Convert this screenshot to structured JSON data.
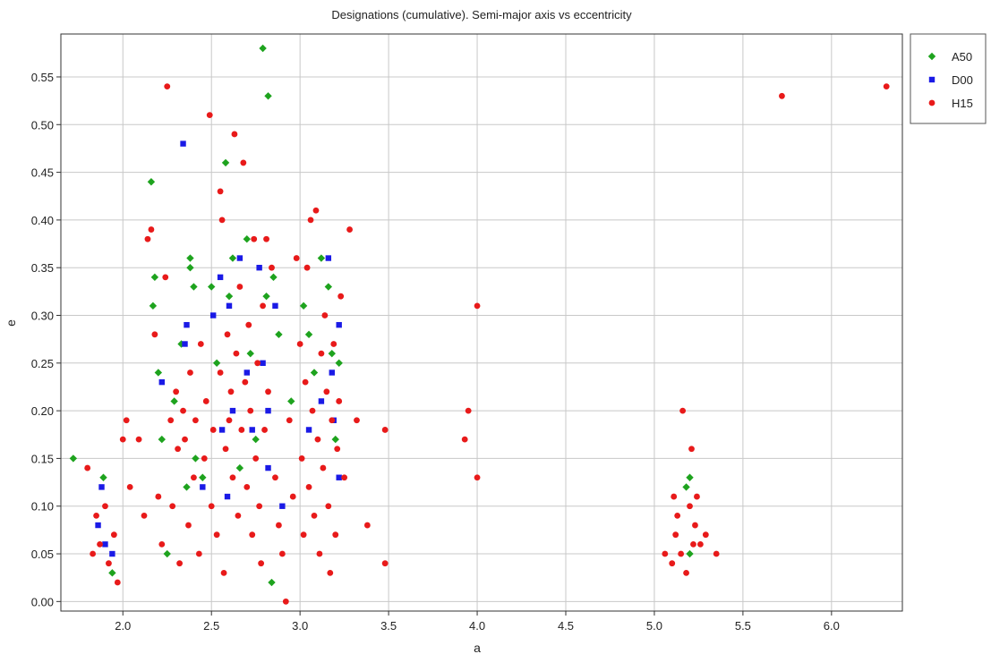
{
  "chart_data": {
    "type": "scatter",
    "title": "Designations (cumulative). Semi-major axis vs eccentricity",
    "xlabel": "a",
    "ylabel": "e",
    "xlim": [
      1.65,
      6.4
    ],
    "ylim": [
      -0.01,
      0.595
    ],
    "xticks": [
      "2.0",
      "2.5",
      "3.0",
      "3.5",
      "4.0",
      "4.5",
      "5.0",
      "5.5",
      "6.0"
    ],
    "yticks": [
      "0.00",
      "0.05",
      "0.10",
      "0.15",
      "0.20",
      "0.25",
      "0.30",
      "0.35",
      "0.40",
      "0.45",
      "0.50",
      "0.55"
    ],
    "grid": true,
    "legend_position": "outside-top-right",
    "series": [
      {
        "name": "A50",
        "color": "#1ea31e",
        "marker": "diamond",
        "points": [
          [
            1.72,
            0.15
          ],
          [
            1.89,
            0.13
          ],
          [
            1.94,
            0.03
          ],
          [
            2.16,
            0.44
          ],
          [
            2.17,
            0.31
          ],
          [
            2.18,
            0.34
          ],
          [
            2.2,
            0.24
          ],
          [
            2.22,
            0.17
          ],
          [
            2.25,
            0.05
          ],
          [
            2.29,
            0.21
          ],
          [
            2.33,
            0.27
          ],
          [
            2.36,
            0.12
          ],
          [
            2.38,
            0.36
          ],
          [
            2.38,
            0.35
          ],
          [
            2.4,
            0.33
          ],
          [
            2.41,
            0.15
          ],
          [
            2.45,
            0.13
          ],
          [
            2.5,
            0.33
          ],
          [
            2.53,
            0.25
          ],
          [
            2.58,
            0.46
          ],
          [
            2.6,
            0.32
          ],
          [
            2.62,
            0.36
          ],
          [
            2.66,
            0.14
          ],
          [
            2.7,
            0.38
          ],
          [
            2.72,
            0.26
          ],
          [
            2.75,
            0.17
          ],
          [
            2.79,
            0.58
          ],
          [
            2.81,
            0.32
          ],
          [
            2.82,
            0.53
          ],
          [
            2.84,
            0.02
          ],
          [
            2.85,
            0.34
          ],
          [
            2.88,
            0.28
          ],
          [
            2.95,
            0.21
          ],
          [
            3.02,
            0.31
          ],
          [
            3.05,
            0.28
          ],
          [
            3.08,
            0.24
          ],
          [
            3.12,
            0.36
          ],
          [
            3.16,
            0.33
          ],
          [
            3.18,
            0.26
          ],
          [
            3.2,
            0.17
          ],
          [
            3.22,
            0.25
          ],
          [
            5.18,
            0.12
          ],
          [
            5.2,
            0.13
          ],
          [
            5.2,
            0.05
          ]
        ]
      },
      {
        "name": "D00",
        "color": "#1a1ae6",
        "marker": "square",
        "points": [
          [
            1.86,
            0.08
          ],
          [
            1.88,
            0.12
          ],
          [
            1.9,
            0.06
          ],
          [
            1.94,
            0.05
          ],
          [
            2.22,
            0.23
          ],
          [
            2.34,
            0.48
          ],
          [
            2.35,
            0.27
          ],
          [
            2.36,
            0.29
          ],
          [
            2.45,
            0.12
          ],
          [
            2.51,
            0.3
          ],
          [
            2.55,
            0.34
          ],
          [
            2.56,
            0.18
          ],
          [
            2.59,
            0.11
          ],
          [
            2.6,
            0.31
          ],
          [
            2.62,
            0.2
          ],
          [
            2.66,
            0.36
          ],
          [
            2.7,
            0.24
          ],
          [
            2.73,
            0.18
          ],
          [
            2.77,
            0.35
          ],
          [
            2.79,
            0.25
          ],
          [
            2.82,
            0.2
          ],
          [
            2.82,
            0.14
          ],
          [
            2.86,
            0.31
          ],
          [
            2.9,
            0.1
          ],
          [
            3.05,
            0.18
          ],
          [
            3.12,
            0.21
          ],
          [
            3.16,
            0.36
          ],
          [
            3.18,
            0.24
          ],
          [
            3.19,
            0.19
          ],
          [
            3.22,
            0.13
          ],
          [
            3.22,
            0.29
          ]
        ]
      },
      {
        "name": "H15",
        "color": "#e81a1a",
        "marker": "circle",
        "points": [
          [
            1.8,
            0.14
          ],
          [
            1.83,
            0.05
          ],
          [
            1.85,
            0.09
          ],
          [
            1.87,
            0.06
          ],
          [
            1.9,
            0.1
          ],
          [
            1.92,
            0.04
          ],
          [
            1.95,
            0.07
          ],
          [
            1.97,
            0.02
          ],
          [
            2.0,
            0.17
          ],
          [
            2.02,
            0.19
          ],
          [
            2.04,
            0.12
          ],
          [
            2.09,
            0.17
          ],
          [
            2.12,
            0.09
          ],
          [
            2.14,
            0.38
          ],
          [
            2.16,
            0.39
          ],
          [
            2.18,
            0.28
          ],
          [
            2.2,
            0.11
          ],
          [
            2.22,
            0.06
          ],
          [
            2.24,
            0.34
          ],
          [
            2.25,
            0.54
          ],
          [
            2.27,
            0.19
          ],
          [
            2.28,
            0.1
          ],
          [
            2.3,
            0.22
          ],
          [
            2.31,
            0.16
          ],
          [
            2.32,
            0.04
          ],
          [
            2.34,
            0.2
          ],
          [
            2.35,
            0.17
          ],
          [
            2.37,
            0.08
          ],
          [
            2.38,
            0.24
          ],
          [
            2.4,
            0.13
          ],
          [
            2.41,
            0.19
          ],
          [
            2.43,
            0.05
          ],
          [
            2.44,
            0.27
          ],
          [
            2.46,
            0.15
          ],
          [
            2.47,
            0.21
          ],
          [
            2.49,
            0.51
          ],
          [
            2.5,
            0.1
          ],
          [
            2.51,
            0.18
          ],
          [
            2.53,
            0.07
          ],
          [
            2.55,
            0.24
          ],
          [
            2.55,
            0.43
          ],
          [
            2.56,
            0.4
          ],
          [
            2.57,
            0.03
          ],
          [
            2.58,
            0.16
          ],
          [
            2.59,
            0.28
          ],
          [
            2.6,
            0.19
          ],
          [
            2.61,
            0.22
          ],
          [
            2.62,
            0.13
          ],
          [
            2.63,
            0.49
          ],
          [
            2.64,
            0.26
          ],
          [
            2.65,
            0.09
          ],
          [
            2.66,
            0.33
          ],
          [
            2.67,
            0.18
          ],
          [
            2.68,
            0.46
          ],
          [
            2.69,
            0.23
          ],
          [
            2.7,
            0.12
          ],
          [
            2.71,
            0.29
          ],
          [
            2.72,
            0.2
          ],
          [
            2.73,
            0.07
          ],
          [
            2.74,
            0.38
          ],
          [
            2.75,
            0.15
          ],
          [
            2.76,
            0.25
          ],
          [
            2.77,
            0.1
          ],
          [
            2.78,
            0.04
          ],
          [
            2.79,
            0.31
          ],
          [
            2.8,
            0.18
          ],
          [
            2.81,
            0.38
          ],
          [
            2.82,
            0.22
          ],
          [
            2.84,
            0.35
          ],
          [
            2.86,
            0.13
          ],
          [
            2.88,
            0.08
          ],
          [
            2.9,
            0.05
          ],
          [
            2.92,
            0.0
          ],
          [
            2.94,
            0.19
          ],
          [
            2.96,
            0.11
          ],
          [
            2.98,
            0.36
          ],
          [
            3.0,
            0.27
          ],
          [
            3.01,
            0.15
          ],
          [
            3.02,
            0.07
          ],
          [
            3.03,
            0.23
          ],
          [
            3.04,
            0.35
          ],
          [
            3.05,
            0.12
          ],
          [
            3.06,
            0.4
          ],
          [
            3.07,
            0.2
          ],
          [
            3.08,
            0.09
          ],
          [
            3.09,
            0.41
          ],
          [
            3.1,
            0.17
          ],
          [
            3.11,
            0.05
          ],
          [
            3.12,
            0.26
          ],
          [
            3.13,
            0.14
          ],
          [
            3.14,
            0.3
          ],
          [
            3.15,
            0.22
          ],
          [
            3.16,
            0.1
          ],
          [
            3.17,
            0.03
          ],
          [
            3.18,
            0.19
          ],
          [
            3.19,
            0.27
          ],
          [
            3.2,
            0.07
          ],
          [
            3.21,
            0.16
          ],
          [
            3.22,
            0.21
          ],
          [
            3.23,
            0.32
          ],
          [
            3.25,
            0.13
          ],
          [
            3.28,
            0.39
          ],
          [
            3.32,
            0.19
          ],
          [
            3.38,
            0.08
          ],
          [
            3.48,
            0.18
          ],
          [
            3.48,
            0.04
          ],
          [
            3.93,
            0.17
          ],
          [
            3.95,
            0.2
          ],
          [
            4.0,
            0.31
          ],
          [
            4.0,
            0.13
          ],
          [
            5.06,
            0.05
          ],
          [
            5.1,
            0.04
          ],
          [
            5.11,
            0.11
          ],
          [
            5.12,
            0.07
          ],
          [
            5.13,
            0.09
          ],
          [
            5.15,
            0.05
          ],
          [
            5.16,
            0.2
          ],
          [
            5.18,
            0.03
          ],
          [
            5.2,
            0.1
          ],
          [
            5.21,
            0.16
          ],
          [
            5.22,
            0.06
          ],
          [
            5.23,
            0.08
          ],
          [
            5.24,
            0.11
          ],
          [
            5.26,
            0.06
          ],
          [
            5.29,
            0.07
          ],
          [
            5.35,
            0.05
          ],
          [
            5.72,
            0.53
          ],
          [
            6.31,
            0.54
          ]
        ]
      }
    ]
  }
}
